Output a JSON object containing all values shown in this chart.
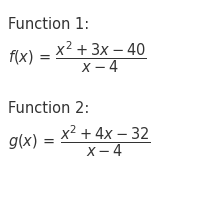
{
  "background_color": "#ffffff",
  "function1_label": "Function 1:",
  "function2_label": "Function 2:",
  "text_color": "#333333",
  "label_fontsize": 10.5,
  "formula_fontsize": 10.5,
  "fig_width": 2.11,
  "fig_height": 1.99,
  "dpi": 100
}
